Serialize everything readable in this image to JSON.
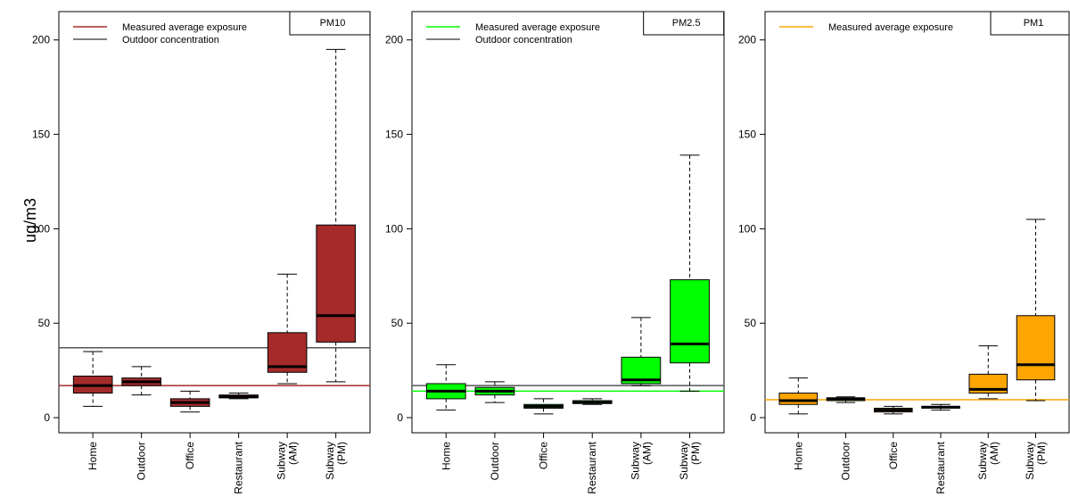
{
  "chart_data": [
    {
      "type": "box",
      "badge": "PM10",
      "ylabel": "ug/m3",
      "ylim": [
        -8,
        215
      ],
      "yticks": [
        0,
        50,
        100,
        150,
        200
      ],
      "categories": [
        "Home",
        "Outdoor",
        "Office",
        "Restaurant",
        "Subway\n(AM)",
        "Subway\n(PM)"
      ],
      "box_color": "#A52A2A",
      "boxes": [
        {
          "min": 6,
          "q1": 13,
          "median": 17,
          "q3": 22,
          "max": 35
        },
        {
          "min": 12,
          "q1": 17,
          "median": 19,
          "q3": 21,
          "max": 27
        },
        {
          "min": 3,
          "q1": 6,
          "median": 8,
          "q3": 10,
          "max": 14
        },
        {
          "min": 10,
          "q1": 10.5,
          "median": 11,
          "q3": 12,
          "max": 13
        },
        {
          "min": 18,
          "q1": 24,
          "median": 27,
          "q3": 45,
          "max": 76
        },
        {
          "min": 19,
          "q1": 40,
          "median": 54,
          "q3": 102,
          "max": 195
        }
      ],
      "reference_lines": [
        {
          "name": "Measured average exposure",
          "value": 17,
          "color": "#A52A2A"
        },
        {
          "name": "Outdoor concentration",
          "value": 37,
          "color": "#555555"
        }
      ],
      "legend": [
        "Measured average exposure",
        "Outdoor concentration"
      ],
      "legend_position": "top-left"
    },
    {
      "type": "box",
      "badge": "PM2.5",
      "ylabel": "",
      "ylim": [
        -8,
        215
      ],
      "yticks": [
        0,
        50,
        100,
        150,
        200
      ],
      "categories": [
        "Home",
        "Outdoor",
        "Office",
        "Restaurant",
        "Subway\n(AM)",
        "Subway\n(PM)"
      ],
      "box_color": "#00FF00",
      "boxes": [
        {
          "min": 4,
          "q1": 10,
          "median": 14,
          "q3": 18,
          "max": 28
        },
        {
          "min": 8,
          "q1": 12,
          "median": 14,
          "q3": 16,
          "max": 19
        },
        {
          "min": 2,
          "q1": 5,
          "median": 6,
          "q3": 7,
          "max": 10
        },
        {
          "min": 7,
          "q1": 7.5,
          "median": 8,
          "q3": 9,
          "max": 10
        },
        {
          "min": 17,
          "q1": 18,
          "median": 20,
          "q3": 32,
          "max": 53
        },
        {
          "min": 14,
          "q1": 29,
          "median": 39,
          "q3": 73,
          "max": 139
        }
      ],
      "reference_lines": [
        {
          "name": "Measured average exposure",
          "value": 14,
          "color": "#00FF00"
        },
        {
          "name": "Outdoor concentration",
          "value": 17,
          "color": "#555555"
        }
      ],
      "legend": [
        "Measured average exposure",
        "Outdoor concentration"
      ],
      "legend_position": "top-left"
    },
    {
      "type": "box",
      "badge": "PM1",
      "ylabel": "",
      "ylim": [
        -8,
        215
      ],
      "yticks": [
        0,
        50,
        100,
        150,
        200
      ],
      "categories": [
        "Home",
        "Outdoor",
        "Office",
        "Restaurant",
        "Subway\n(AM)",
        "Subway\n(PM)"
      ],
      "box_color": "#FFA500",
      "boxes": [
        {
          "min": 2,
          "q1": 7,
          "median": 9,
          "q3": 13,
          "max": 21
        },
        {
          "min": 8,
          "q1": 9,
          "median": 10,
          "q3": 10.5,
          "max": 11
        },
        {
          "min": 2,
          "q1": 3,
          "median": 4,
          "q3": 5,
          "max": 6
        },
        {
          "min": 4,
          "q1": 5,
          "median": 5.5,
          "q3": 6,
          "max": 7
        },
        {
          "min": 10,
          "q1": 13,
          "median": 15,
          "q3": 23,
          "max": 38
        },
        {
          "min": 9,
          "q1": 20,
          "median": 28,
          "q3": 54,
          "max": 105
        }
      ],
      "reference_lines": [
        {
          "name": "Measured average exposure",
          "value": 9.5,
          "color": "#FFA500"
        }
      ],
      "legend": [
        "Measured average exposure"
      ],
      "legend_position": "top-left"
    }
  ]
}
